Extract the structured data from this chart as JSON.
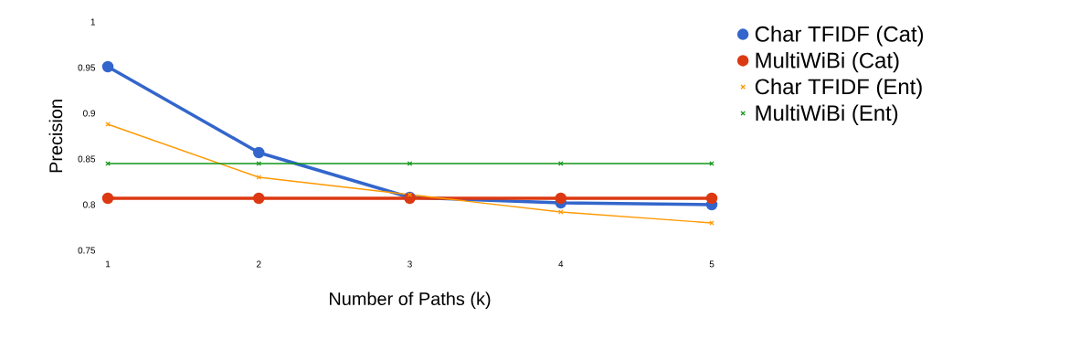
{
  "chart_data": {
    "type": "line",
    "xlabel": "Number of Paths (k)",
    "ylabel": "Precision",
    "x": [
      1,
      2,
      3,
      4,
      5
    ],
    "series": [
      {
        "name": "Char TFIDF (Cat)",
        "color": "#3366cc",
        "marker": "circle",
        "values": [
          0.951,
          0.857,
          0.808,
          0.802,
          0.8
        ]
      },
      {
        "name": "MultiWiBi (Cat)",
        "color": "#dc3912",
        "marker": "circle",
        "values": [
          0.807,
          0.807,
          0.807,
          0.807,
          0.807
        ]
      },
      {
        "name": "Char TFIDF (Ent)",
        "color": "#ff9900",
        "marker": "cross",
        "values": [
          0.888,
          0.83,
          0.811,
          0.792,
          0.78
        ]
      },
      {
        "name": "MultiWiBi (Ent)",
        "color": "#109618",
        "marker": "cross",
        "values": [
          0.845,
          0.845,
          0.845,
          0.845,
          0.845
        ]
      }
    ],
    "xlim": [
      1,
      5
    ],
    "xticks": [
      1,
      2,
      3,
      4,
      5
    ],
    "ylim": [
      0.75,
      1
    ],
    "yticks": [
      0.75,
      0.8,
      0.85,
      0.9,
      0.95,
      1
    ],
    "grid": false,
    "legend": "right",
    "line_style": "solid"
  }
}
